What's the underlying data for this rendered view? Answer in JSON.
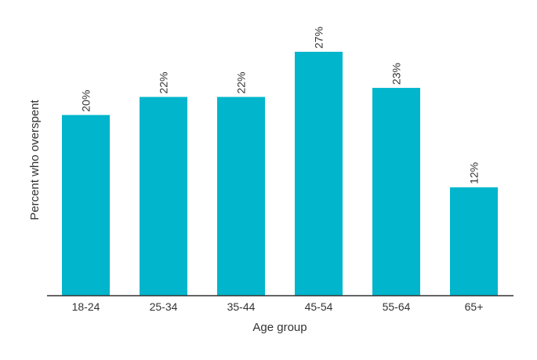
{
  "chart_data": {
    "type": "bar",
    "title": "",
    "xlabel": "Age group",
    "ylabel": "Percent who overspent",
    "categories": [
      "18-24",
      "25-34",
      "35-44",
      "45-54",
      "55-64",
      "65+"
    ],
    "values": [
      20,
      22,
      22,
      27,
      23,
      12
    ],
    "value_labels": [
      "20%",
      "22%",
      "22%",
      "27%",
      "23%",
      "12%"
    ],
    "ylim": [
      0,
      27
    ],
    "grid": false,
    "legend": "none",
    "bar_color": "#00b5cc",
    "axis_color": "#333333"
  }
}
